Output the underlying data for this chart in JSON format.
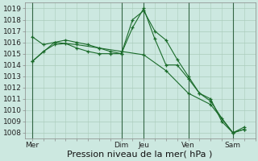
{
  "background_color": "#cce8e0",
  "plot_bg_color": "#cce8e0",
  "grid_color": "#aaccbb",
  "line_color": "#1a6b2a",
  "marker_color": "#1a6b2a",
  "ylim": [
    1007.5,
    1019.5
  ],
  "yticks": [
    1008,
    1009,
    1010,
    1011,
    1012,
    1013,
    1014,
    1015,
    1016,
    1017,
    1018,
    1019
  ],
  "xlabel": "Pression niveau de la mer( hPa )",
  "xlabel_fontsize": 8,
  "tick_fontsize": 6.5,
  "day_labels": [
    "Mer",
    "Dim",
    "Jeu",
    "Ven",
    "Sam"
  ],
  "day_positions": [
    0,
    48,
    60,
    84,
    108
  ],
  "vline_positions": [
    0,
    48,
    60,
    84,
    108
  ],
  "xlim": [
    -4,
    120
  ],
  "series": [
    {
      "x": [
        0,
        6,
        12,
        18,
        24,
        30,
        36,
        42,
        48,
        54,
        60,
        66,
        72,
        78,
        84,
        90,
        96,
        102,
        108,
        114
      ],
      "y": [
        1016.5,
        1015.8,
        1016.0,
        1016.2,
        1016.0,
        1015.8,
        1015.5,
        1015.2,
        1015.0,
        1018.0,
        1018.8,
        1017.0,
        1016.2,
        1014.5,
        1013.0,
        1011.5,
        1011.0,
        1009.0,
        1008.0,
        1008.5
      ]
    },
    {
      "x": [
        0,
        6,
        12,
        18,
        24,
        30,
        36,
        42,
        48,
        54,
        60,
        66,
        72,
        78,
        84,
        90,
        96,
        102,
        108,
        114
      ],
      "y": [
        1014.3,
        1015.2,
        1015.8,
        1015.9,
        1015.5,
        1015.2,
        1015.0,
        1015.0,
        1015.0,
        1017.3,
        1019.0,
        1016.3,
        1014.0,
        1014.0,
        1012.8,
        1011.5,
        1010.8,
        1009.3,
        1008.0,
        1008.3
      ]
    },
    {
      "x": [
        0,
        12,
        24,
        36,
        48,
        60,
        72,
        84,
        96,
        108,
        114
      ],
      "y": [
        1014.3,
        1016.0,
        1015.8,
        1015.5,
        1015.2,
        1014.9,
        1013.5,
        1011.5,
        1010.5,
        1008.0,
        1008.3
      ]
    }
  ]
}
